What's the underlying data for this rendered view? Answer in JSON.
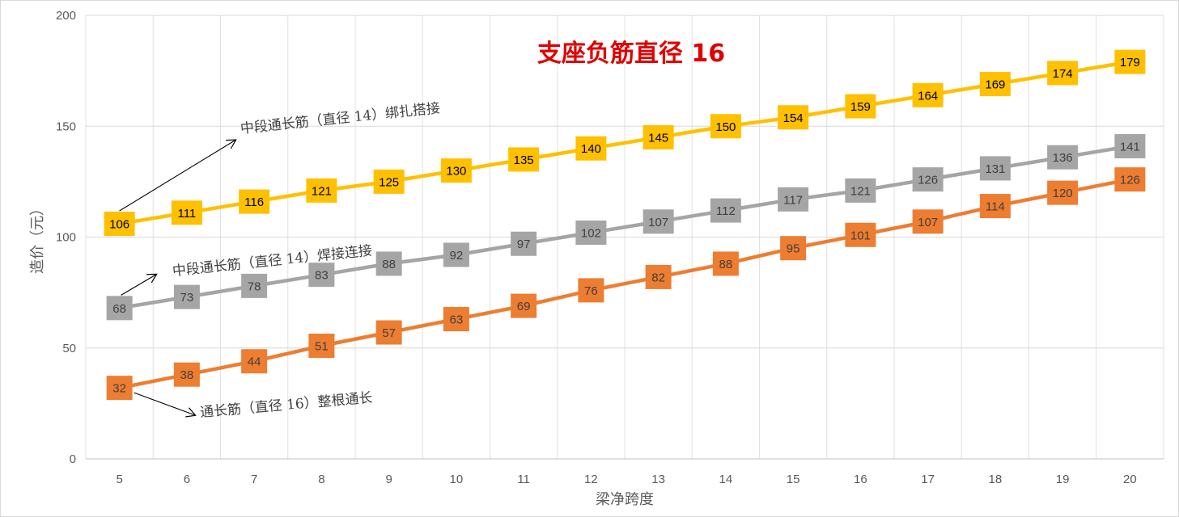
{
  "chart_data": {
    "type": "line",
    "title": "支座负筋直径 16",
    "xlabel": "梁净跨度",
    "ylabel": "造价（元）",
    "ylim": [
      0,
      200
    ],
    "yticks": [
      0,
      50,
      100,
      150,
      200
    ],
    "x": [
      5,
      6,
      7,
      8,
      9,
      10,
      11,
      12,
      13,
      14,
      15,
      16,
      17,
      18,
      19,
      20
    ],
    "grid": true,
    "legend": "none",
    "series": [
      {
        "key": "yellow",
        "color": "#ffc000",
        "label_color": "#000000",
        "values": [
          106,
          111,
          116,
          121,
          125,
          130,
          135,
          140,
          145,
          150,
          154,
          159,
          164,
          169,
          174,
          179
        ]
      },
      {
        "key": "gray",
        "color": "#a5a5a5",
        "label_color": "#404040",
        "values": [
          68,
          73,
          78,
          83,
          88,
          92,
          97,
          102,
          107,
          112,
          117,
          121,
          126,
          131,
          136,
          141
        ]
      },
      {
        "key": "orange",
        "color": "#ed7d31",
        "label_color": "#404040",
        "values": [
          32,
          38,
          44,
          51,
          57,
          63,
          69,
          76,
          82,
          88,
          95,
          101,
          107,
          114,
          120,
          126
        ]
      }
    ],
    "annotations": [
      {
        "text": "中段通长筋（直径 14）绑扎搭接",
        "series": "yellow",
        "points_at_x": 5
      },
      {
        "text": "中段通长筋（直径 14）焊接连接",
        "series": "gray",
        "points_at_x": 5
      },
      {
        "text": "通长筋（直径 16）整根通长",
        "series": "orange",
        "points_at_x": 5
      }
    ]
  }
}
